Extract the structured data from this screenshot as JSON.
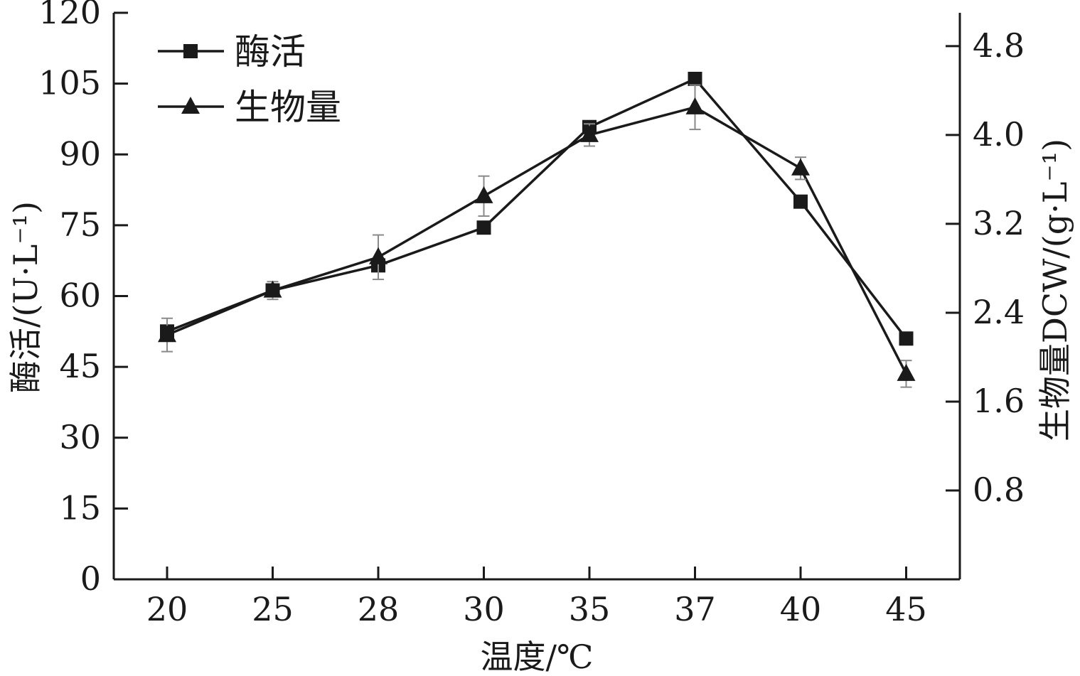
{
  "chart_data": {
    "type": "line",
    "categories": [
      "20",
      "25",
      "28",
      "30",
      "35",
      "37",
      "40",
      "45"
    ],
    "xlabel": "温度/℃",
    "ylabel_left": "酶活/(U·L⁻¹)",
    "ylabel_right": "生物量DCW/(g·L⁻¹)",
    "ylim_left": [
      0,
      120
    ],
    "yticks_left": [
      "0",
      "15",
      "30",
      "45",
      "60",
      "75",
      "90",
      "105",
      "120"
    ],
    "ylim_right": [
      0,
      5.1
    ],
    "yticks_right": [
      "0.8",
      "1.6",
      "2.4",
      "3.2",
      "4.0",
      "4.8"
    ],
    "legend_position": "top-left",
    "grid": false,
    "series": [
      {
        "name": "酶活",
        "axis": "left",
        "marker": "square",
        "values": [
          52.5,
          61.2,
          66.5,
          74.5,
          95.8,
          106.0,
          80.0,
          51.0
        ]
      },
      {
        "name": "生物量",
        "axis": "right",
        "marker": "triangle",
        "values": [
          2.2,
          2.6,
          2.9,
          3.45,
          4.0,
          4.25,
          3.7,
          1.85
        ],
        "error": [
          0.15,
          0.08,
          0.2,
          0.18,
          0.1,
          0.2,
          0.1,
          0.12
        ]
      }
    ]
  }
}
